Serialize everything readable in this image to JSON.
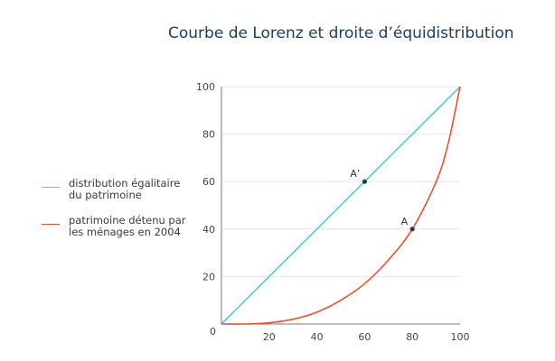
{
  "title": "Courbe de Lorenz et droite d’équidistribution",
  "colors": {
    "equal": "#5bc4e6",
    "lorenz": "#e8532b",
    "grid": "#e6e6e6",
    "axis": "#777777",
    "point": "#2b3a4a"
  },
  "legend": [
    {
      "label": "distribution égalitaire du patrimoine",
      "color": "#5bc4e6"
    },
    {
      "label": "patrimoine détenu par les ménages en 2004",
      "color": "#e8532b"
    }
  ],
  "chart_data": {
    "type": "line",
    "title": "Courbe de Lorenz et droite d’équidistribution",
    "xlabel": "",
    "ylabel": "",
    "xlim": [
      0,
      100
    ],
    "ylim": [
      0,
      100
    ],
    "xticks": [
      20,
      40,
      60,
      80,
      100
    ],
    "yticks": [
      20,
      40,
      60,
      80,
      100
    ],
    "origin_label": "0",
    "grid": "horizontal",
    "legend_position": "left",
    "series": [
      {
        "key": "equal",
        "x": [
          0,
          100
        ],
        "y": [
          0,
          100
        ]
      },
      {
        "key": "lorenz",
        "x": [
          0,
          10,
          20,
          30,
          40,
          50,
          60,
          70,
          80,
          90,
          95,
          100
        ],
        "y": [
          0,
          0,
          0.5,
          2,
          5,
          10,
          17,
          27,
          40,
          60,
          76,
          100
        ]
      }
    ],
    "points": [
      {
        "label": "A’",
        "x": 60,
        "y": 60
      },
      {
        "label": "A",
        "x": 80,
        "y": 40
      }
    ]
  }
}
